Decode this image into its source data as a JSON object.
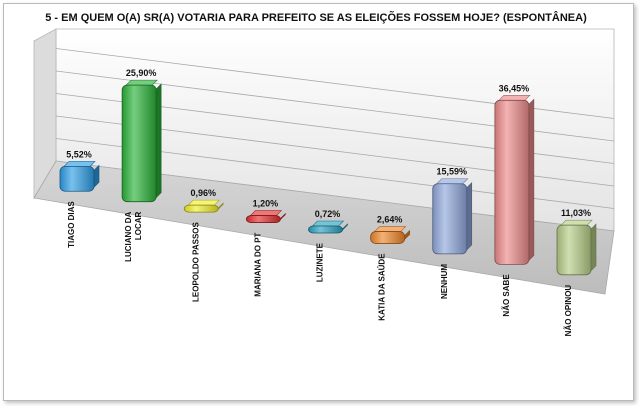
{
  "chart_data": {
    "type": "bar",
    "title": "5 - EM QUEM O(A) SR(A) VOTARIA PARA PREFEITO SE AS ELEIÇÕES FOSSEM HOJE? (ESPONTÂNEA)",
    "categories": [
      [
        "TIAGO DIAS"
      ],
      [
        "LUCIANO DA",
        "LOCAR"
      ],
      [
        "LEOPOLDO PASSOS"
      ],
      [
        "MARIANA DO PT"
      ],
      [
        "LUZINETE"
      ],
      [
        "KATIA DA SAÚDE"
      ],
      [
        "NENHUM"
      ],
      [
        "NÃO SABE"
      ],
      [
        "NÃO OPINOU"
      ]
    ],
    "values": [
      5.52,
      25.9,
      0.96,
      1.2,
      0.72,
      2.64,
      15.59,
      36.45,
      11.03
    ],
    "labels": [
      "5,52%",
      "25,90%",
      "0,96%",
      "1,20%",
      "0,72%",
      "2,64%",
      "15,59%",
      "36,45%",
      "11,03%"
    ],
    "colors": [
      "#2f9fe6",
      "#2bb33a",
      "#f0ee2c",
      "#e42e2e",
      "#2aa2c2",
      "#f0872a",
      "#8fa8dc",
      "#ec8a8a",
      "#b6cd87"
    ],
    "ylim": [
      0,
      40
    ],
    "grid": true,
    "legend": "none"
  }
}
